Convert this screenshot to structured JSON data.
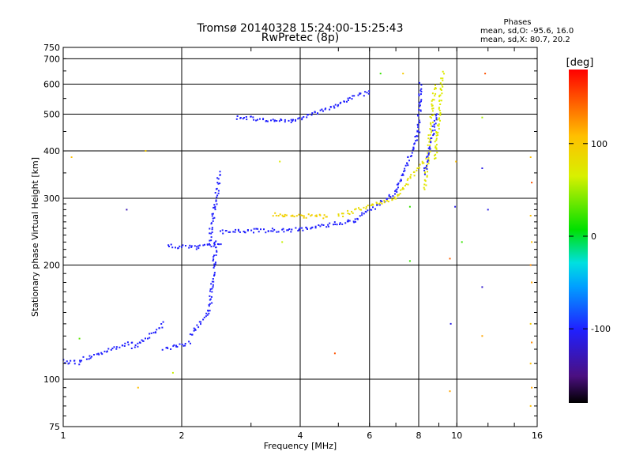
{
  "chart_data": {
    "type": "scatter",
    "title": "Tromsø 20140328 15:24:00-15:25:43",
    "subtitle": "RwPretec (8p)",
    "xlabel": "Frequency [MHz]",
    "ylabel": "Stationary phase Virtual Height [km]",
    "x_scale": "log2",
    "y_scale": "log",
    "xlim": [
      1,
      16
    ],
    "ylim": [
      75,
      750
    ],
    "x_ticks": [
      "1",
      "2",
      "4",
      "6",
      "8",
      "10",
      "16"
    ],
    "x_tick_values": [
      1,
      2,
      4,
      6,
      8,
      10,
      16
    ],
    "y_ticks": [
      "75",
      "100",
      "200",
      "300",
      "400",
      "500",
      "600",
      "700",
      "750"
    ],
    "y_tick_values": [
      75,
      100,
      200,
      300,
      400,
      500,
      600,
      700,
      750
    ],
    "grid": true,
    "phase_info": {
      "heading": "Phases",
      "line1": "mean, sd,O: -95.6, 16.0",
      "line2": "mean, sd,X: 80.7, 20.2"
    },
    "colorbar": {
      "label": "[deg]",
      "range": [
        -180,
        180
      ],
      "ticks": [
        "-100",
        "0",
        "100"
      ],
      "tick_values": [
        -100,
        0,
        100
      ]
    },
    "traces": [
      {
        "from": [
          1.0,
          112
        ],
        "to": [
          1.1,
          110
        ],
        "phase": -100
      },
      {
        "from": [
          1.1,
          112
        ],
        "to": [
          1.5,
          125
        ],
        "phase": -100
      },
      {
        "from": [
          1.5,
          120
        ],
        "to": [
          1.8,
          140
        ],
        "phase": -100
      },
      {
        "from": [
          1.8,
          120
        ],
        "to": [
          2.1,
          125
        ],
        "phase": -100
      },
      {
        "from": [
          2.1,
          130
        ],
        "to": [
          2.35,
          150
        ],
        "phase": -100
      },
      {
        "from": [
          2.35,
          150
        ],
        "to": [
          2.45,
          230
        ],
        "phase": -100
      },
      {
        "from": [
          2.35,
          230
        ],
        "to": [
          2.5,
          350
        ],
        "phase": -100
      },
      {
        "from": [
          1.85,
          225
        ],
        "to": [
          2.2,
          222
        ],
        "phase": -100
      },
      {
        "from": [
          2.2,
          222
        ],
        "to": [
          2.5,
          228
        ],
        "phase": -100
      },
      {
        "from": [
          2.5,
          245
        ],
        "to": [
          4.0,
          248
        ],
        "phase": -100
      },
      {
        "from": [
          4.0,
          248
        ],
        "to": [
          5.5,
          262
        ],
        "phase": -100
      },
      {
        "from": [
          5.5,
          262
        ],
        "to": [
          7.0,
          310
        ],
        "phase": -100
      },
      {
        "from": [
          7.0,
          310
        ],
        "to": [
          8.0,
          450
        ],
        "phase": -100
      },
      {
        "from": [
          8.0,
          450
        ],
        "to": [
          8.1,
          600
        ],
        "phase": -100
      },
      {
        "from": [
          2.75,
          490
        ],
        "to": [
          3.8,
          480
        ],
        "phase": -100
      },
      {
        "from": [
          3.8,
          480
        ],
        "to": [
          5.0,
          530
        ],
        "phase": -100
      },
      {
        "from": [
          5.0,
          530
        ],
        "to": [
          6.0,
          575
        ],
        "phase": -100
      },
      {
        "from": [
          3.4,
          272
        ],
        "to": [
          4.7,
          268
        ],
        "phase": 95
      },
      {
        "from": [
          5.0,
          270
        ],
        "to": [
          7.0,
          300
        ],
        "phase": 85
      },
      {
        "from": [
          7.0,
          300
        ],
        "to": [
          8.3,
          380
        ],
        "phase": 80
      },
      {
        "from": [
          8.3,
          320
        ],
        "to": [
          8.8,
          600
        ],
        "phase": 75
      },
      {
        "from": [
          8.8,
          380
        ],
        "to": [
          9.2,
          640
        ],
        "phase": 70
      },
      {
        "from": [
          8.3,
          350
        ],
        "to": [
          8.9,
          500
        ],
        "phase": -100
      }
    ],
    "scattered_points": [
      {
        "x": 1.62,
        "y": 400,
        "phase": 100
      },
      {
        "x": 1.45,
        "y": 280,
        "phase": -130
      },
      {
        "x": 1.05,
        "y": 385,
        "phase": 110
      },
      {
        "x": 1.1,
        "y": 128,
        "phase": 30
      },
      {
        "x": 1.55,
        "y": 95,
        "phase": 110
      },
      {
        "x": 1.9,
        "y": 104,
        "phase": 60
      },
      {
        "x": 3.55,
        "y": 375,
        "phase": 70
      },
      {
        "x": 3.6,
        "y": 230,
        "phase": 60
      },
      {
        "x": 4.9,
        "y": 117,
        "phase": 150
      },
      {
        "x": 7.6,
        "y": 285,
        "phase": 20
      },
      {
        "x": 7.6,
        "y": 205,
        "phase": 20
      },
      {
        "x": 9.6,
        "y": 208,
        "phase": 145
      },
      {
        "x": 9.65,
        "y": 140,
        "phase": -110
      },
      {
        "x": 9.9,
        "y": 285,
        "phase": -110
      },
      {
        "x": 9.6,
        "y": 93,
        "phase": 120
      },
      {
        "x": 9.95,
        "y": 375,
        "phase": 110
      },
      {
        "x": 10.3,
        "y": 230,
        "phase": 20
      },
      {
        "x": 11.6,
        "y": 490,
        "phase": 50
      },
      {
        "x": 11.8,
        "y": 640,
        "phase": 150
      },
      {
        "x": 11.6,
        "y": 360,
        "phase": -110
      },
      {
        "x": 12.0,
        "y": 280,
        "phase": -110
      },
      {
        "x": 11.6,
        "y": 175,
        "phase": -120
      },
      {
        "x": 11.6,
        "y": 130,
        "phase": 120
      },
      {
        "x": 15.4,
        "y": 385,
        "phase": 110
      },
      {
        "x": 15.5,
        "y": 330,
        "phase": 150
      },
      {
        "x": 15.4,
        "y": 270,
        "phase": 110
      },
      {
        "x": 15.5,
        "y": 230,
        "phase": 110
      },
      {
        "x": 15.4,
        "y": 200,
        "phase": 130
      },
      {
        "x": 15.5,
        "y": 180,
        "phase": 120
      },
      {
        "x": 15.4,
        "y": 140,
        "phase": 100
      },
      {
        "x": 15.5,
        "y": 125,
        "phase": 130
      },
      {
        "x": 15.4,
        "y": 110,
        "phase": 110
      },
      {
        "x": 15.5,
        "y": 95,
        "phase": 120
      },
      {
        "x": 15.4,
        "y": 85,
        "phase": 110
      },
      {
        "x": 6.4,
        "y": 640,
        "phase": 20
      },
      {
        "x": 7.3,
        "y": 640,
        "phase": 100
      }
    ]
  }
}
